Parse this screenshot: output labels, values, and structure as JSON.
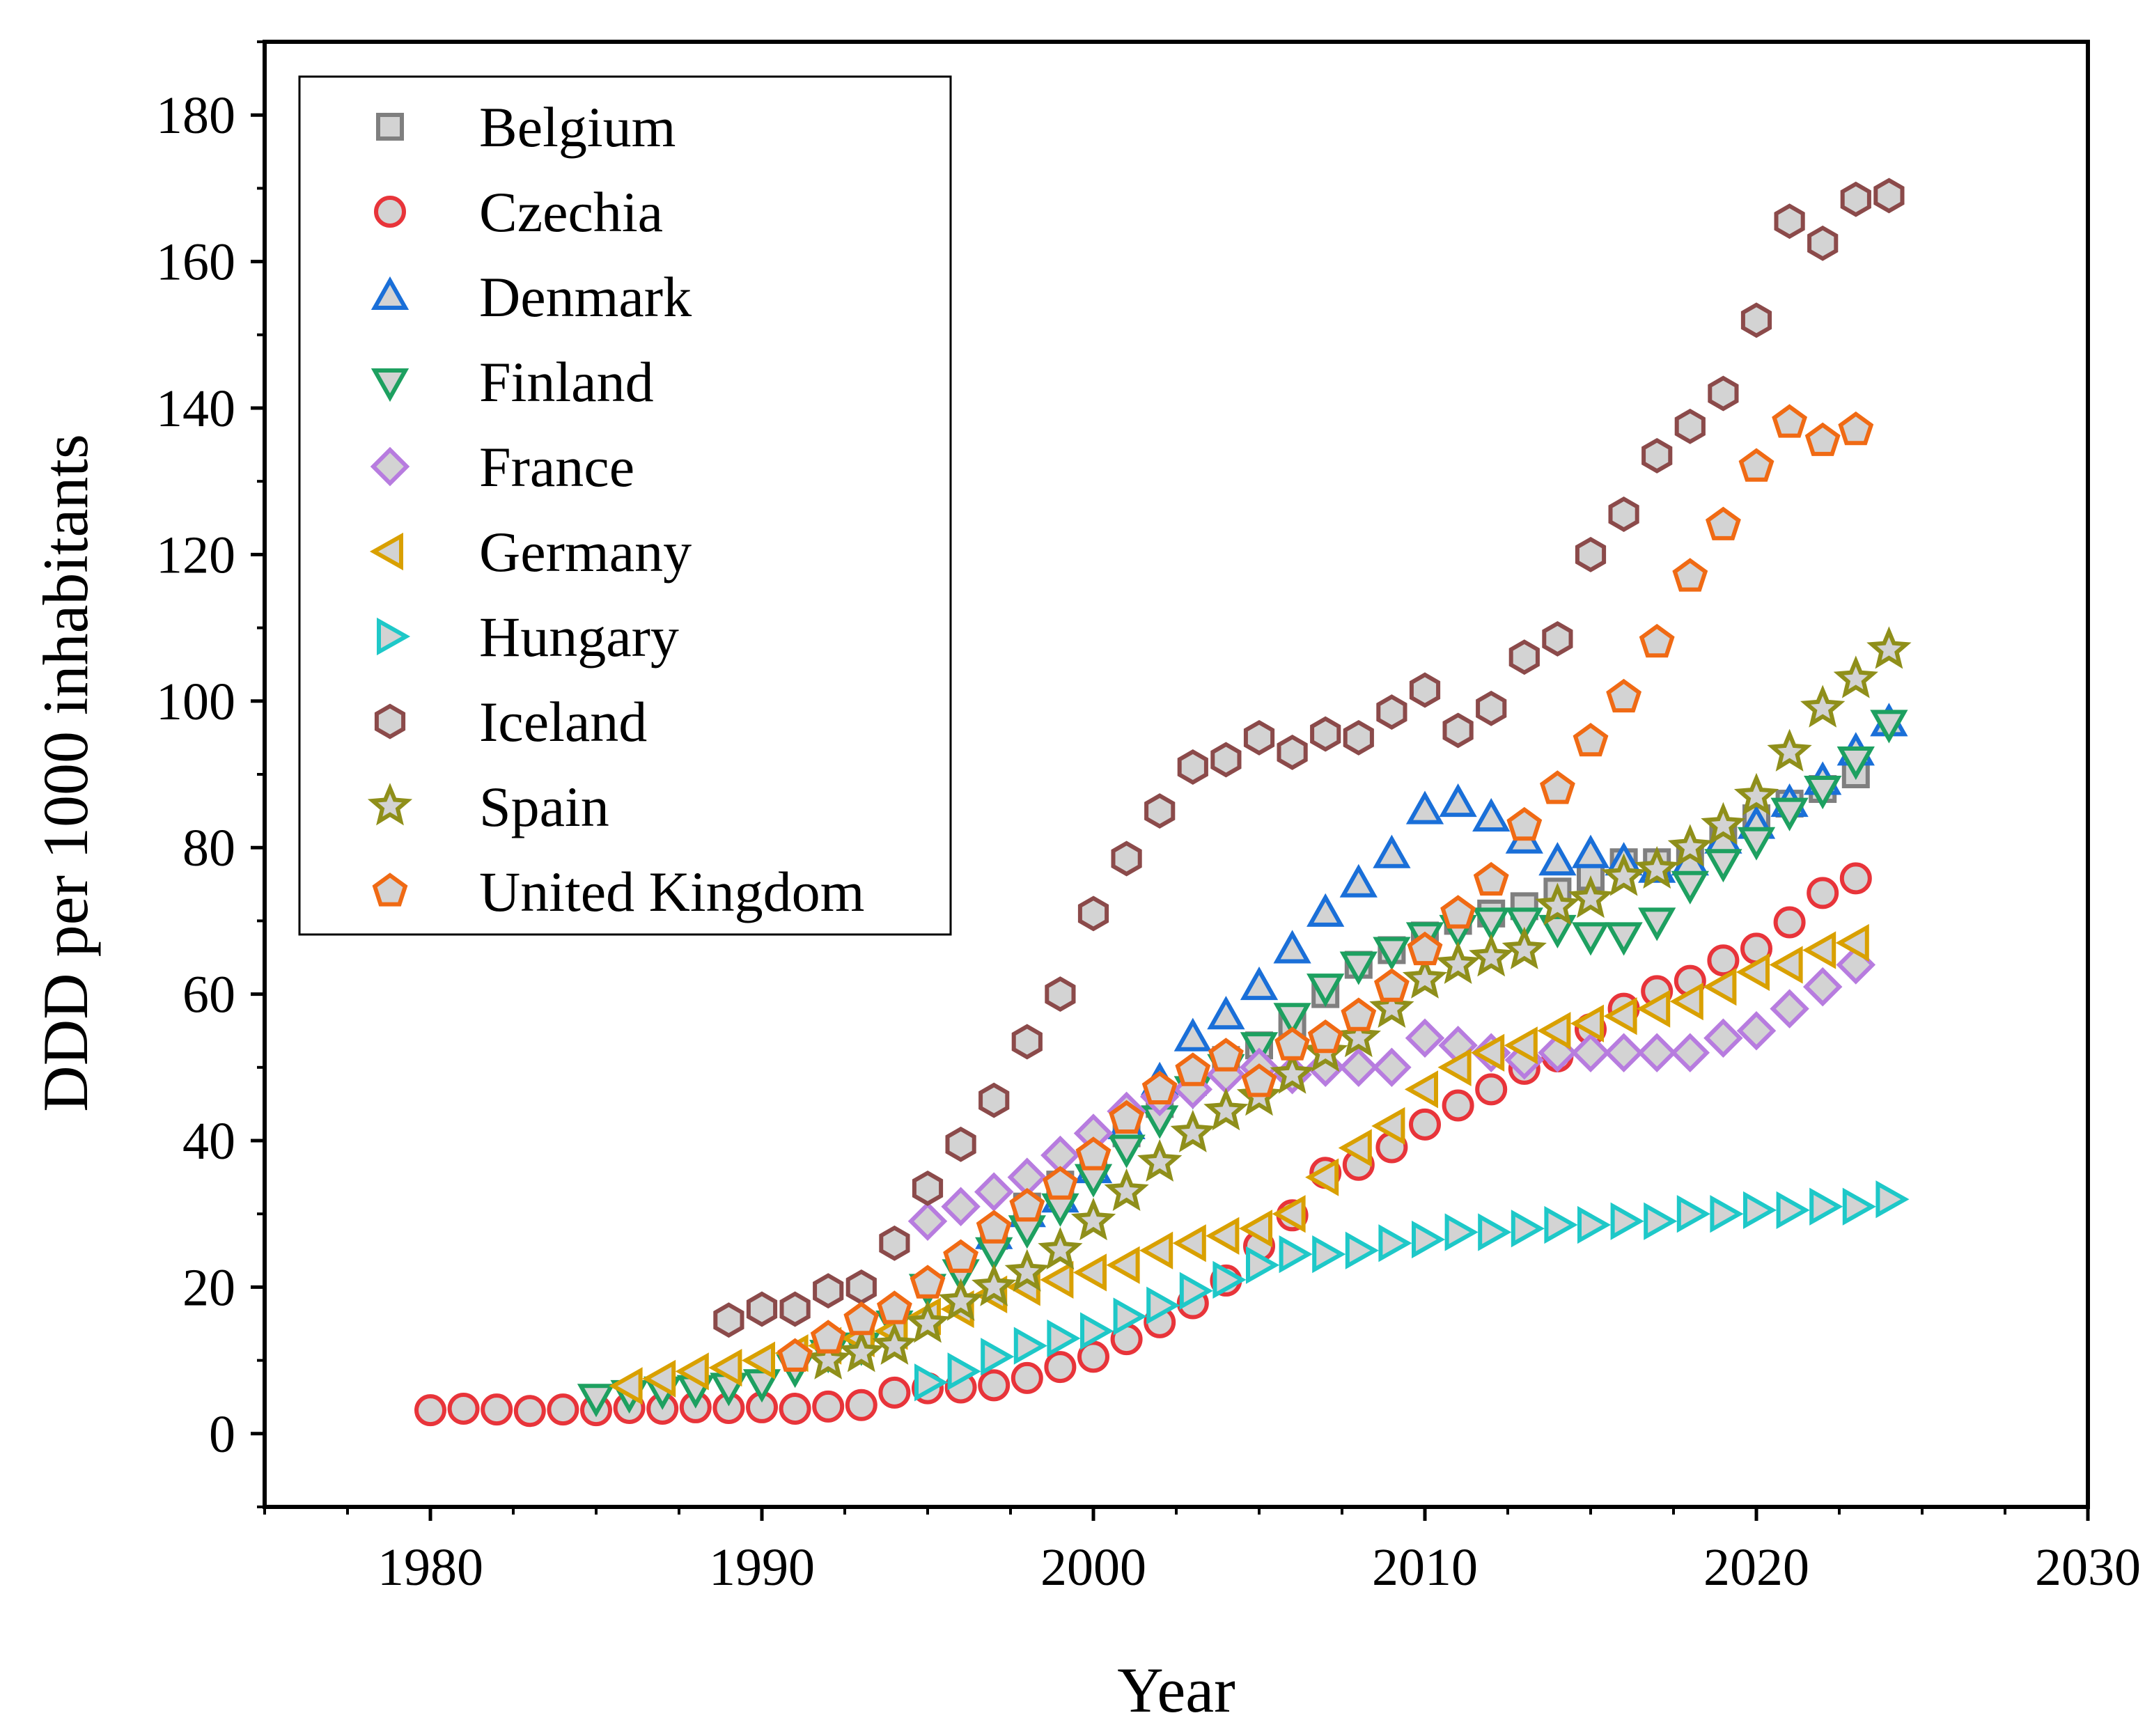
{
  "chart_data": {
    "type": "scatter",
    "title": "",
    "xlabel": "Year",
    "ylabel": "DDD per 1000 inhabitants",
    "xlim": [
      1975,
      2030
    ],
    "ylim": [
      -10,
      190
    ],
    "xticks": [
      1980,
      1990,
      2000,
      2010,
      2020,
      2030
    ],
    "yticks": [
      0,
      20,
      40,
      60,
      80,
      100,
      120,
      140,
      160,
      180
    ],
    "grid": false,
    "legend_position": "top-left",
    "series": [
      {
        "name": "Belgium",
        "marker": "square",
        "color": "#7f7f7f",
        "x": [
          1997,
          1998,
          1999,
          2000,
          2001,
          2002,
          2003,
          2004,
          2005,
          2006,
          2007,
          2008,
          2009,
          2010,
          2011,
          2012,
          2013,
          2014,
          2015,
          2016,
          2017,
          2018,
          2019,
          2020,
          2021,
          2022,
          2023
        ],
        "y": [
          27,
          31,
          34,
          37,
          41,
          45,
          48,
          51,
          53,
          56,
          60,
          64,
          66,
          68,
          70,
          71,
          72,
          74,
          76,
          78,
          78,
          79,
          82,
          84,
          86,
          88,
          90
        ]
      },
      {
        "name": "Czechia",
        "marker": "circle",
        "color": "#e8343a",
        "x": [
          1980,
          1981,
          1982,
          1983,
          1984,
          1985,
          1986,
          1987,
          1988,
          1989,
          1990,
          1991,
          1992,
          1993,
          1994,
          1995,
          1996,
          1997,
          1998,
          1999,
          2000,
          2001,
          2002,
          2003,
          2004,
          2005,
          2006,
          2007,
          2008,
          2009,
          2010,
          2011,
          2012,
          2013,
          2014,
          2015,
          2016,
          2017,
          2018,
          2019,
          2020,
          2021,
          2022,
          2023
        ],
        "y": [
          3.2,
          3.4,
          3.3,
          3.1,
          3.3,
          3.2,
          3.5,
          3.4,
          3.6,
          3.5,
          3.6,
          3.4,
          3.7,
          3.9,
          5.6,
          6.2,
          6.3,
          6.6,
          7.6,
          9.1,
          10.5,
          12.9,
          15.2,
          17.8,
          20.9,
          25.6,
          29.8,
          35.6,
          36.7,
          39.1,
          42.2,
          44.8,
          47.0,
          49.8,
          51.5,
          55.2,
          58.0,
          60.4,
          61.8,
          64.6,
          66.2,
          69.8,
          73.8,
          75.8
        ]
      },
      {
        "name": "Denmark",
        "marker": "triangle-up",
        "color": "#1a6fd8",
        "x": [
          1997,
          1998,
          1999,
          2000,
          2001,
          2002,
          2003,
          2004,
          2005,
          2006,
          2007,
          2008,
          2009,
          2010,
          2011,
          2012,
          2013,
          2014,
          2015,
          2016,
          2017,
          2018,
          2019,
          2020,
          2021,
          2022,
          2023,
          2024
        ],
        "y": [
          27,
          30,
          32,
          36,
          42,
          48,
          54,
          57,
          61,
          66,
          71,
          75,
          79,
          85,
          86,
          84,
          81,
          78,
          79,
          78,
          77,
          78,
          81,
          83,
          86,
          89,
          93,
          97
        ]
      },
      {
        "name": "Finland",
        "marker": "triangle-down",
        "color": "#1da060",
        "x": [
          1985,
          1986,
          1987,
          1988,
          1989,
          1990,
          1991,
          1992,
          1993,
          1994,
          1995,
          1996,
          1997,
          1998,
          1999,
          2000,
          2001,
          2002,
          2003,
          2004,
          2005,
          2006,
          2007,
          2008,
          2009,
          2010,
          2011,
          2012,
          2013,
          2014,
          2015,
          2016,
          2017,
          2018,
          2019,
          2020,
          2021,
          2022,
          2023,
          2024
        ],
        "y": [
          5.0,
          5.5,
          6.0,
          6.2,
          6.5,
          7.0,
          9,
          11,
          12,
          15,
          20,
          22,
          25,
          28,
          31,
          35,
          39,
          43,
          47,
          50,
          53,
          57,
          61,
          64,
          66,
          68,
          69,
          70,
          70,
          69,
          68,
          68,
          70,
          75,
          78,
          81,
          85,
          88,
          92,
          97
        ]
      },
      {
        "name": "France",
        "marker": "diamond",
        "color": "#b77cdf",
        "x": [
          1995,
          1996,
          1997,
          1998,
          1999,
          2000,
          2001,
          2002,
          2003,
          2004,
          2005,
          2006,
          2007,
          2008,
          2009,
          2010,
          2011,
          2012,
          2013,
          2014,
          2015,
          2016,
          2017,
          2018,
          2019,
          2020,
          2021,
          2022,
          2023
        ],
        "y": [
          29,
          31,
          33,
          35,
          38,
          41,
          44,
          46,
          47,
          49,
          50,
          49,
          50,
          50,
          50,
          54,
          53,
          52,
          51,
          52,
          52,
          52,
          52,
          52,
          54,
          55,
          58,
          61,
          64
        ]
      },
      {
        "name": "Germany",
        "marker": "triangle-left",
        "color": "#d9a000",
        "x": [
          1986,
          1987,
          1988,
          1989,
          1990,
          1991,
          1992,
          1993,
          1994,
          1995,
          1996,
          1997,
          1998,
          1999,
          2000,
          2001,
          2002,
          2003,
          2004,
          2005,
          2006,
          2007,
          2008,
          2009,
          2010,
          2011,
          2012,
          2013,
          2014,
          2015,
          2016,
          2017,
          2018,
          2019,
          2020,
          2021,
          2022,
          2023
        ],
        "y": [
          6.5,
          7.5,
          8.5,
          9.0,
          10,
          11,
          12,
          13,
          14,
          16,
          17,
          19,
          20,
          21,
          22,
          23,
          25,
          26,
          27,
          28,
          30,
          35,
          39,
          42,
          47,
          50,
          52,
          53,
          55,
          56,
          57,
          58,
          59,
          61,
          63,
          64,
          66,
          67
        ]
      },
      {
        "name": "Hungary",
        "marker": "triangle-right",
        "color": "#1ec8c8",
        "x": [
          1995,
          1996,
          1997,
          1998,
          1999,
          2000,
          2001,
          2002,
          2003,
          2004,
          2005,
          2006,
          2007,
          2008,
          2009,
          2010,
          2011,
          2012,
          2013,
          2014,
          2015,
          2016,
          2017,
          2018,
          2019,
          2020,
          2021,
          2022,
          2023,
          2024
        ],
        "y": [
          7,
          8.5,
          10.5,
          12,
          13,
          14,
          16,
          17.5,
          19.5,
          21,
          23,
          24.5,
          24.5,
          25,
          26,
          26.5,
          27.5,
          27.5,
          28,
          28.5,
          28.5,
          29,
          29,
          30,
          30,
          30.5,
          30.5,
          31,
          31,
          32
        ]
      },
      {
        "name": "Iceland",
        "marker": "hexagon",
        "color": "#8b4a4a",
        "x": [
          1989,
          1990,
          1991,
          1992,
          1993,
          1994,
          1995,
          1996,
          1997,
          1998,
          1999,
          2000,
          2001,
          2002,
          2003,
          2004,
          2005,
          2006,
          2007,
          2008,
          2009,
          2010,
          2011,
          2012,
          2013,
          2014,
          2015,
          2016,
          2017,
          2018,
          2019,
          2020,
          2021,
          2022,
          2023,
          2024
        ],
        "y": [
          15.5,
          17,
          17,
          19.5,
          20,
          26,
          33.5,
          39.5,
          45.5,
          53.5,
          60,
          71,
          78.5,
          85,
          91,
          92,
          95,
          93,
          95.5,
          95,
          98.5,
          101.5,
          96,
          99,
          106,
          108.5,
          120,
          125.5,
          133.5,
          137.5,
          142,
          152,
          165.5,
          162.5,
          168.5,
          169
        ]
      },
      {
        "name": "Spain",
        "marker": "star",
        "color": "#8f8f1a",
        "x": [
          1992,
          1993,
          1994,
          1995,
          1996,
          1997,
          1998,
          1999,
          2000,
          2001,
          2002,
          2003,
          2004,
          2005,
          2006,
          2007,
          2008,
          2009,
          2010,
          2011,
          2012,
          2013,
          2014,
          2015,
          2016,
          2017,
          2018,
          2019,
          2020,
          2021,
          2022,
          2023,
          2024
        ],
        "y": [
          10,
          11,
          12,
          15,
          18,
          20,
          22,
          25,
          29,
          33,
          37,
          41,
          44,
          46,
          49,
          52,
          54,
          58,
          62,
          64,
          65,
          66,
          72,
          73,
          76,
          77,
          80,
          83,
          87,
          93,
          99,
          103,
          107
        ]
      },
      {
        "name": "United Kingdom",
        "marker": "pentagon",
        "color": "#f06a14",
        "x": [
          1991,
          1992,
          1993,
          1994,
          1995,
          1996,
          1997,
          1998,
          1999,
          2000,
          2001,
          2002,
          2003,
          2004,
          2005,
          2006,
          2007,
          2008,
          2009,
          2010,
          2011,
          2012,
          2013,
          2014,
          2015,
          2016,
          2017,
          2018,
          2019,
          2020,
          2021,
          2022,
          2023
        ],
        "y": [
          10.5,
          13,
          15.5,
          17,
          20.5,
          24,
          28,
          31,
          34,
          38,
          43,
          47,
          49.5,
          51.5,
          48,
          53,
          54,
          57,
          61,
          66,
          71,
          75.5,
          83,
          88,
          94.5,
          100.5,
          108,
          117,
          124,
          132,
          138,
          135.5,
          137
        ]
      }
    ]
  }
}
